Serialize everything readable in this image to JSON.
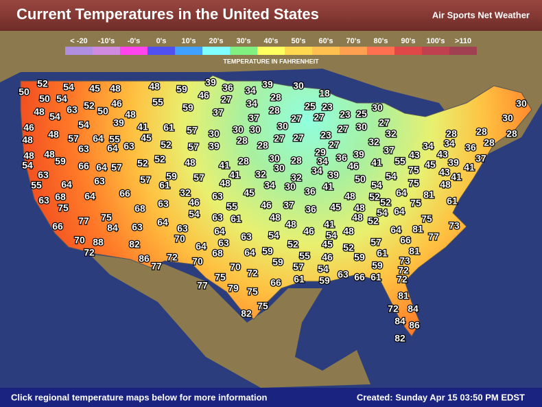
{
  "header": {
    "title": "Current Temperatures in the United States",
    "brand": "Air Sports Net Weather"
  },
  "legend": {
    "caption": "TEMPERATURE IN FAHRENHEIT",
    "items": [
      {
        "label": "< -20",
        "color": "#b08ee0"
      },
      {
        "label": "-10's",
        "color": "#d08ae0"
      },
      {
        "label": "-0's",
        "color": "#ff44ee"
      },
      {
        "label": "0's",
        "color": "#5050f0"
      },
      {
        "label": "10's",
        "color": "#40a0ff"
      },
      {
        "label": "20's",
        "color": "#80ffff"
      },
      {
        "label": "30's",
        "color": "#80f080"
      },
      {
        "label": "40's",
        "color": "#ffff60"
      },
      {
        "label": "50's",
        "color": "#ffd850"
      },
      {
        "label": "60's",
        "color": "#ffc050"
      },
      {
        "label": "70's",
        "color": "#ffa050"
      },
      {
        "label": "80's",
        "color": "#ff7050"
      },
      {
        "label": "90's",
        "color": "#e04848"
      },
      {
        "label": "100's",
        "color": "#c04050"
      },
      {
        "label": ">110",
        "color": "#a04050"
      }
    ]
  },
  "map": {
    "temperatures": [
      52,
      50,
      54,
      45,
      48,
      48,
      59,
      39,
      36,
      34,
      39,
      30,
      18,
      50,
      54,
      63,
      52,
      50,
      46,
      55,
      46,
      27,
      34,
      28,
      30,
      30,
      25,
      23,
      23,
      25,
      28,
      48,
      54,
      48,
      59,
      37,
      37,
      27,
      27,
      27,
      30,
      46,
      54,
      39,
      41,
      61,
      57,
      30,
      30,
      30,
      23,
      27,
      30,
      32,
      28,
      28,
      28,
      48,
      48,
      57,
      64,
      55,
      45,
      52,
      57,
      30,
      39,
      28,
      28,
      27,
      27,
      29,
      27,
      32,
      37,
      34,
      34,
      36,
      28,
      63,
      64,
      63,
      48,
      48,
      59,
      52,
      52,
      48,
      41,
      28,
      30,
      28,
      34,
      36,
      39,
      55,
      43,
      43,
      37,
      54,
      66,
      64,
      57,
      41,
      30,
      32,
      34,
      46,
      41,
      75,
      45,
      39,
      41,
      63,
      59,
      57,
      48,
      32,
      39,
      50,
      54,
      43,
      41,
      55,
      64,
      63,
      57,
      61,
      32,
      34,
      30,
      36,
      41,
      54,
      75,
      48,
      66,
      63,
      68,
      64,
      46,
      63,
      45,
      48,
      52,
      52,
      64,
      75,
      81,
      61,
      75,
      68,
      63,
      55,
      46,
      37,
      36,
      45,
      48,
      54,
      64,
      77,
      75,
      84,
      63,
      64,
      54,
      63,
      61,
      48,
      48,
      75,
      73,
      66,
      63,
      64,
      48,
      52,
      81,
      41,
      54,
      48,
      64,
      77,
      46,
      70,
      88,
      70,
      63,
      63,
      54,
      52,
      45,
      52,
      57,
      66,
      72,
      82,
      64,
      68,
      64,
      59,
      55,
      61,
      81,
      86,
      77,
      72,
      70,
      70,
      59,
      46,
      59,
      73,
      72,
      57,
      54,
      59,
      72,
      77,
      75,
      79,
      75,
      66,
      61,
      59,
      63,
      66,
      61,
      72,
      82,
      75,
      81,
      72,
      84,
      84,
      86,
      82
    ]
  },
  "footer": {
    "note": "Click regional temperature maps below for more information",
    "created": "Created: Sunday Apr 15 03:50 PM EDST"
  }
}
